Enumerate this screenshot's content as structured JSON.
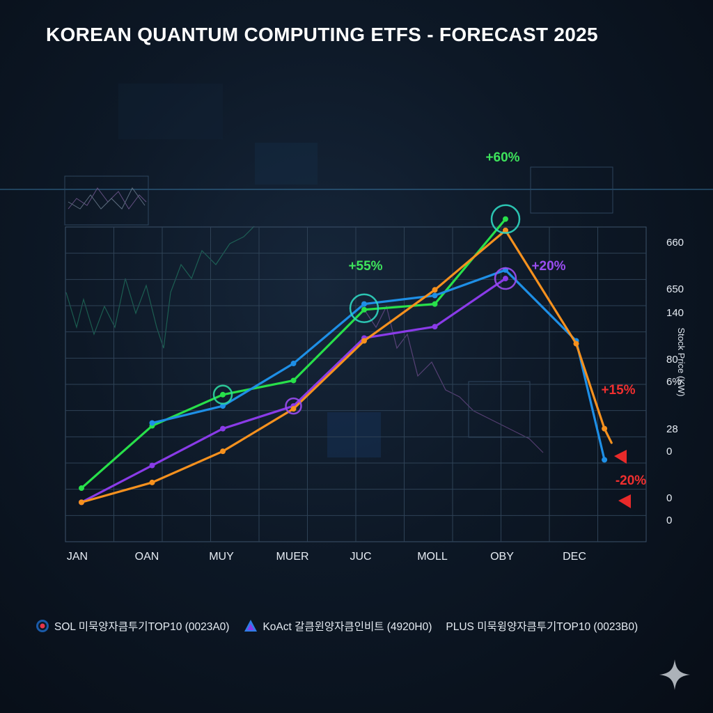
{
  "title": "KOREAN QUANTUM COMPUTING ETFS - FORECAST 2025",
  "chart_data": {
    "type": "line",
    "title": "KOREAN QUANTUM COMPUTING ETFS - FORECAST 2025",
    "xlabel": "",
    "ylabel": "Stock Price (KW)",
    "categories": [
      "JAN",
      "OAN",
      "MUY",
      "MUER",
      "JUC",
      "MOLL",
      "OBY",
      "DEC"
    ],
    "y_tick_labels": [
      "660",
      "650",
      "140",
      "80",
      "6%",
      "28",
      "0",
      "0",
      "0"
    ],
    "ylim": [
      0,
      100
    ],
    "grid": true,
    "series": [
      {
        "name": "",
        "color": "#28e04a",
        "x": [
          0,
          1,
          2,
          3,
          4,
          5,
          6
        ],
        "y": [
          14,
          36,
          47,
          52,
          77,
          79,
          109
        ]
      },
      {
        "name": "",
        "color": "#1e8fe6",
        "x": [
          1,
          2,
          3,
          4,
          5,
          6,
          7,
          7.4
        ],
        "y": [
          37,
          43,
          58,
          79,
          82,
          91,
          66,
          24
        ]
      },
      {
        "name": "",
        "color": "#8a3be8",
        "x": [
          0,
          1,
          2,
          3,
          4,
          5,
          6
        ],
        "y": [
          9,
          22,
          35,
          43,
          67,
          71,
          88
        ]
      },
      {
        "name": "",
        "color": "#f6911e",
        "x": [
          0,
          1,
          2,
          3,
          4,
          5,
          6,
          7,
          7.4,
          7.5
        ],
        "y": [
          9,
          16,
          27,
          42,
          66,
          84,
          105,
          65,
          35,
          30
        ]
      }
    ],
    "annotations": [
      {
        "text": "+60%",
        "color": "#3ee35c"
      },
      {
        "text": "+55%",
        "color": "#3ee35c"
      },
      {
        "text": "+20%",
        "color": "#9a4df0"
      },
      {
        "text": "+15%",
        "color": "#ef2f2f"
      },
      {
        "text": "-20%",
        "color": "#ef2f2f"
      }
    ]
  },
  "legend": [
    {
      "label": "SOL 미묵양자큼투기TOP10 (0023A0)",
      "icon": "target-icon",
      "color": "#e8354a"
    },
    {
      "label": "KoAct 갈큼윈양자큼인비트 (4920H0)",
      "icon": "triangle-logo-icon",
      "color": "#2f7ee8"
    },
    {
      "label": "PLUS 미묵윙양자큼투기TOP10 (0023B0)",
      "icon": "",
      "color": ""
    }
  ],
  "colors": {
    "background": "#0d1826",
    "grid": "#2e4256"
  }
}
